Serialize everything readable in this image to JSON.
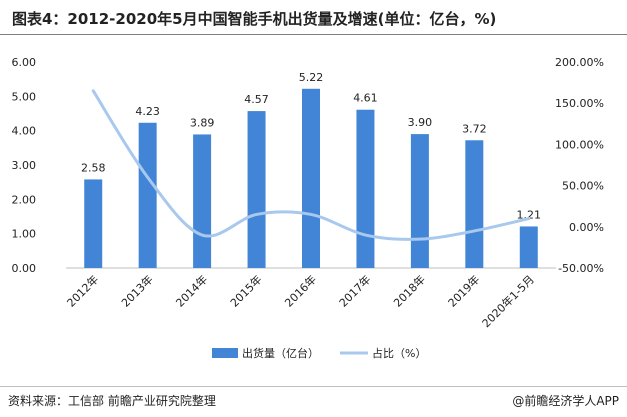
{
  "title": "图表4：2012-2020年5月中国智能手机出货量及增速(单位：亿台，%)",
  "source": "资料来源：工信部 前瞻产业研究院整理",
  "brand": "@前瞻经济学人APP",
  "colors": {
    "bar": "#4285d6",
    "line": "#a8c8ee"
  },
  "chart_data": {
    "type": "bar",
    "categories": [
      "2012年",
      "2013年",
      "2014年",
      "2015年",
      "2016年",
      "2017年",
      "2018年",
      "2019年",
      "2020年1-5月"
    ],
    "series": [
      {
        "name": "出货量（亿台）",
        "type": "bar",
        "axis": "left",
        "values": [
          2.58,
          4.23,
          3.89,
          4.57,
          5.22,
          4.61,
          3.9,
          3.72,
          1.21
        ],
        "labels": [
          "2.58",
          "4.23",
          "3.89",
          "4.57",
          "5.22",
          "4.61",
          "3.90",
          "3.72",
          "1.21"
        ]
      },
      {
        "name": "占比（%）",
        "type": "line",
        "axis": "right",
        "values": [
          165,
          60,
          -10,
          15,
          15,
          -10,
          -15,
          -5,
          10
        ]
      }
    ],
    "left_axis": {
      "min": 0,
      "max": 6,
      "ticks": [
        "0.00",
        "1.00",
        "2.00",
        "3.00",
        "4.00",
        "5.00",
        "6.00"
      ]
    },
    "right_axis": {
      "min": -50,
      "max": 200,
      "ticks": [
        "-50.00%",
        "0.00%",
        "50.00%",
        "100.00%",
        "150.00%",
        "200.00%"
      ]
    },
    "grid": false,
    "legend": "bottom-center"
  }
}
